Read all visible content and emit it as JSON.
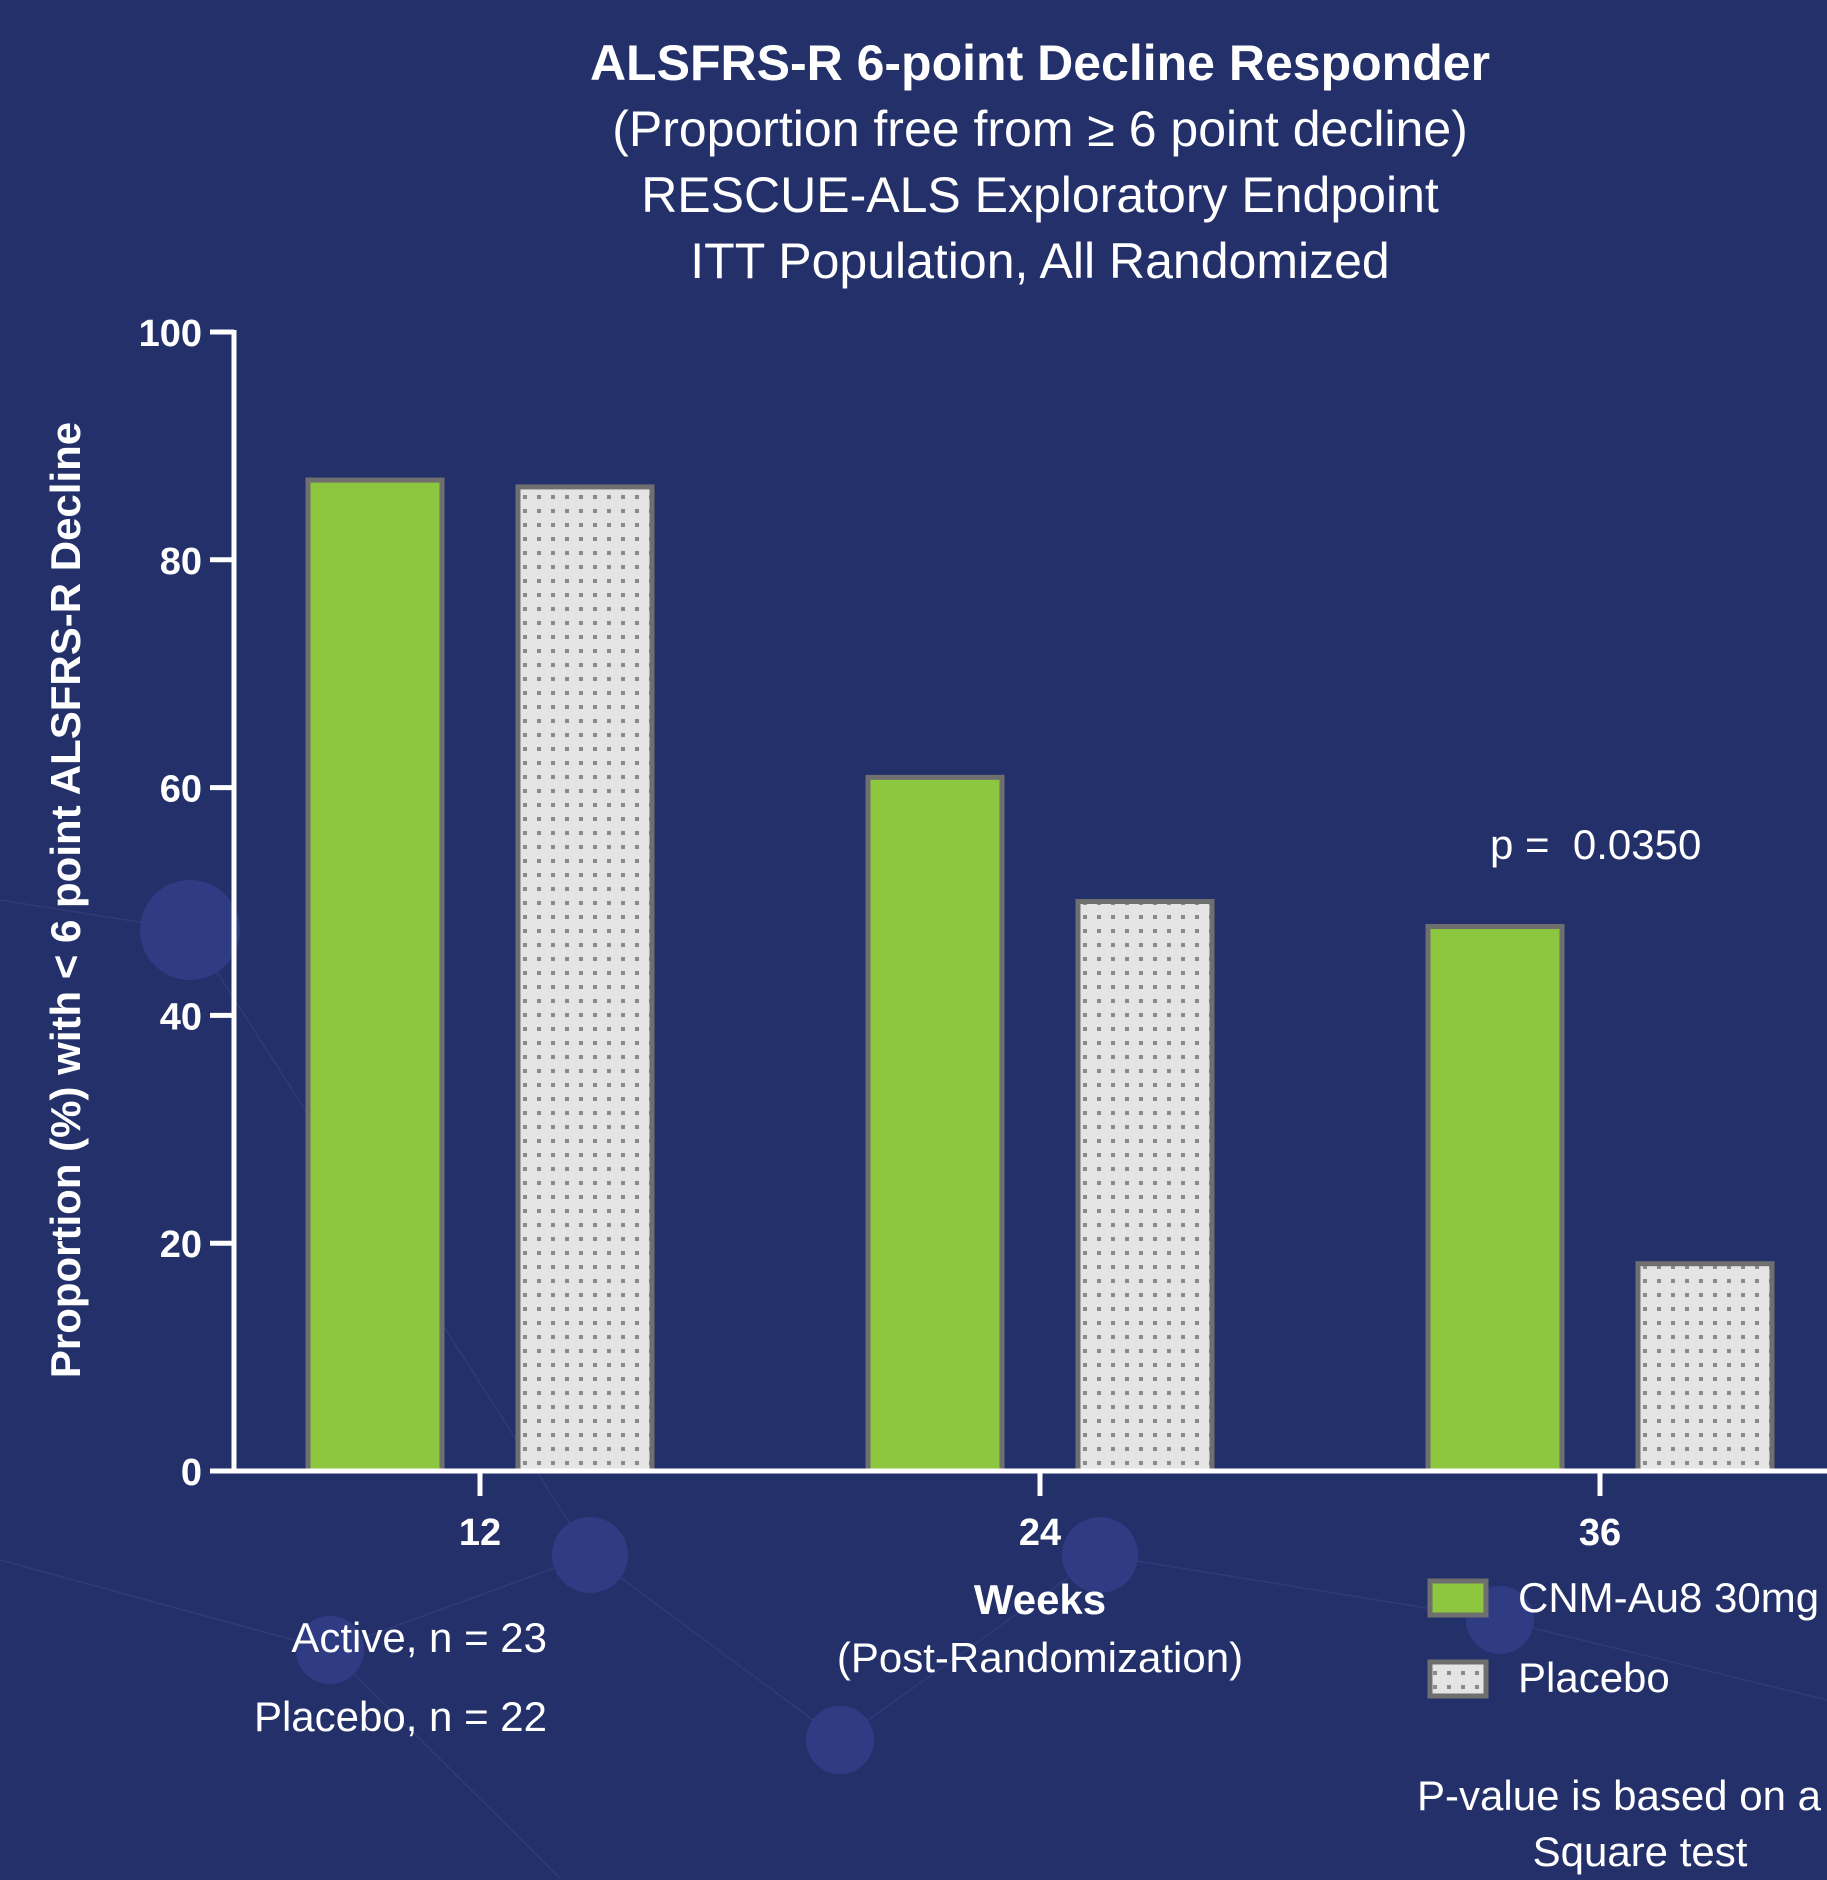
{
  "chart_data": {
    "type": "bar",
    "title": "ALSFRS-R 6-point Decline Responder",
    "subtitle_lines": [
      "(Proportion free from ≥ 6 point decline)",
      "RESCUE-ALS Exploratory Endpoint",
      "ITT Population, All Randomized"
    ],
    "ylabel": "Proportion (%) with < 6 point ALSFRS-R Decline",
    "xlabel": "Weeks",
    "xlabel_sub": "(Post-Randomization)",
    "ylim": [
      0,
      100
    ],
    "yticks": [
      "0",
      "20",
      "40",
      "60",
      "80",
      "100"
    ],
    "categories": [
      "12",
      "24",
      "36"
    ],
    "series": [
      {
        "name": "CNM-Au8 30mg",
        "values": [
          87.0,
          60.9,
          47.8
        ],
        "color": "#8dc63f"
      },
      {
        "name": "Placebo",
        "values": [
          86.4,
          50.0,
          18.2
        ],
        "color": "#e4e4e4"
      }
    ],
    "legend_position": "bottom-right",
    "grid": false
  },
  "annotations": {
    "p_value": "p =  0.0350",
    "active_n": "Active, n = 23",
    "placebo_n": "Placebo, n = 22",
    "footnote_line1": "P-value is based on a C",
    "footnote_line2": "Square test"
  },
  "colors": {
    "background": "#23306a",
    "bar_outline": "#6f6f6f"
  }
}
